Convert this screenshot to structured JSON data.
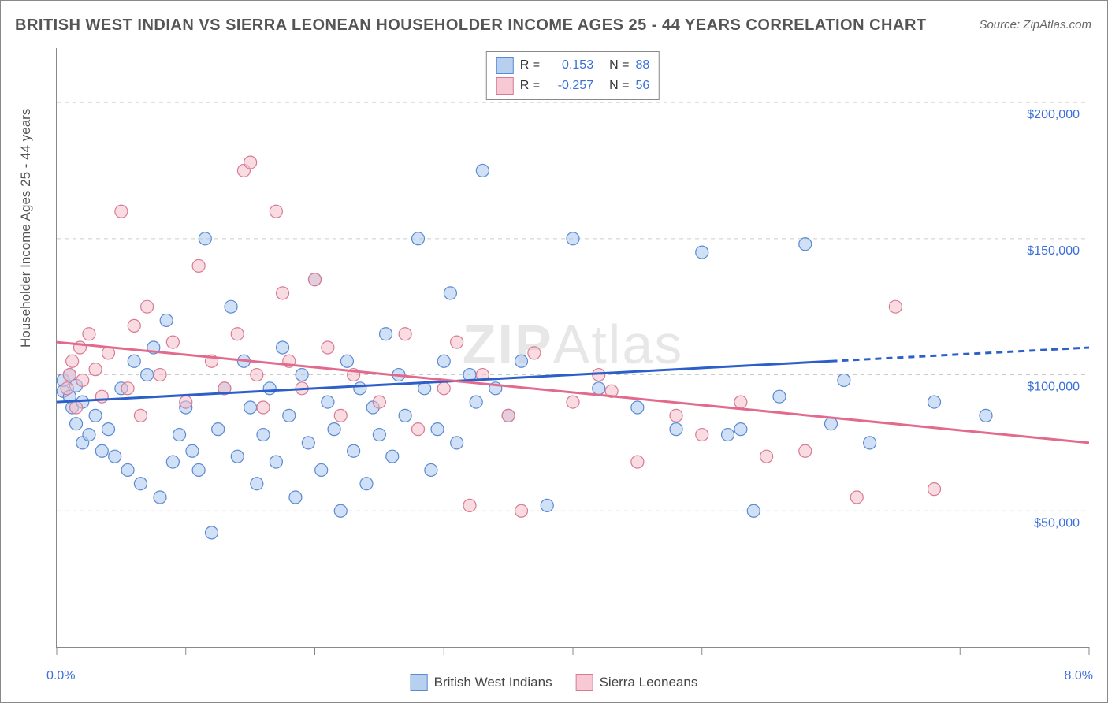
{
  "title": "BRITISH WEST INDIAN VS SIERRA LEONEAN HOUSEHOLDER INCOME AGES 25 - 44 YEARS CORRELATION CHART",
  "source": "Source: ZipAtlas.com",
  "watermark_bold": "ZIP",
  "watermark_thin": "Atlas",
  "ylabel": "Householder Income Ages 25 - 44 years",
  "chart": {
    "type": "scatter",
    "xlim": [
      0,
      8
    ],
    "ylim": [
      0,
      220000
    ],
    "x_ticks": [
      0,
      1,
      2,
      3,
      4,
      5,
      6,
      7,
      8
    ],
    "x_tick_labels_visible": {
      "0": "0.0%",
      "8": "8.0%"
    },
    "y_gridlines": [
      50000,
      100000,
      150000,
      200000
    ],
    "y_tick_labels": {
      "50000": "$50,000",
      "100000": "$100,000",
      "150000": "$150,000",
      "200000": "$200,000"
    },
    "background_color": "#ffffff",
    "grid_color": "#cccccc",
    "axis_color": "#888888",
    "tick_label_color": "#3b6fd8",
    "marker_radius": 8,
    "marker_opacity": 0.55,
    "series": [
      {
        "name": "British West Indians",
        "color_fill": "#a9c7ef",
        "color_stroke": "#5a8ad0",
        "legend_swatch": "#b8d0f0",
        "R": "0.153",
        "N": "88",
        "trend": {
          "x1": 0,
          "y1": 90000,
          "x2_solid": 6.0,
          "y2_solid": 105000,
          "x2_dash": 8.0,
          "y2_dash": 110000,
          "color": "#2c5fc9",
          "width": 3
        },
        "points": [
          [
            0.05,
            94000
          ],
          [
            0.05,
            98000
          ],
          [
            0.1,
            92000
          ],
          [
            0.1,
            100000
          ],
          [
            0.12,
            88000
          ],
          [
            0.15,
            96000
          ],
          [
            0.15,
            82000
          ],
          [
            0.2,
            90000
          ],
          [
            0.2,
            75000
          ],
          [
            0.25,
            78000
          ],
          [
            0.3,
            85000
          ],
          [
            0.35,
            72000
          ],
          [
            0.4,
            80000
          ],
          [
            0.45,
            70000
          ],
          [
            0.5,
            95000
          ],
          [
            0.55,
            65000
          ],
          [
            0.6,
            105000
          ],
          [
            0.65,
            60000
          ],
          [
            0.7,
            100000
          ],
          [
            0.75,
            110000
          ],
          [
            0.8,
            55000
          ],
          [
            0.85,
            120000
          ],
          [
            0.9,
            68000
          ],
          [
            0.95,
            78000
          ],
          [
            1.0,
            88000
          ],
          [
            1.05,
            72000
          ],
          [
            1.1,
            65000
          ],
          [
            1.15,
            150000
          ],
          [
            1.2,
            42000
          ],
          [
            1.25,
            80000
          ],
          [
            1.3,
            95000
          ],
          [
            1.35,
            125000
          ],
          [
            1.4,
            70000
          ],
          [
            1.45,
            105000
          ],
          [
            1.5,
            88000
          ],
          [
            1.55,
            60000
          ],
          [
            1.6,
            78000
          ],
          [
            1.65,
            95000
          ],
          [
            1.7,
            68000
          ],
          [
            1.75,
            110000
          ],
          [
            1.8,
            85000
          ],
          [
            1.85,
            55000
          ],
          [
            1.9,
            100000
          ],
          [
            1.95,
            75000
          ],
          [
            2.0,
            135000
          ],
          [
            2.05,
            65000
          ],
          [
            2.1,
            90000
          ],
          [
            2.15,
            80000
          ],
          [
            2.2,
            50000
          ],
          [
            2.25,
            105000
          ],
          [
            2.3,
            72000
          ],
          [
            2.35,
            95000
          ],
          [
            2.4,
            60000
          ],
          [
            2.45,
            88000
          ],
          [
            2.5,
            78000
          ],
          [
            2.55,
            115000
          ],
          [
            2.6,
            70000
          ],
          [
            2.65,
            100000
          ],
          [
            2.7,
            85000
          ],
          [
            2.8,
            150000
          ],
          [
            2.85,
            95000
          ],
          [
            2.9,
            65000
          ],
          [
            2.95,
            80000
          ],
          [
            3.0,
            105000
          ],
          [
            3.05,
            130000
          ],
          [
            3.1,
            75000
          ],
          [
            3.2,
            100000
          ],
          [
            3.25,
            90000
          ],
          [
            3.3,
            175000
          ],
          [
            3.4,
            95000
          ],
          [
            3.5,
            85000
          ],
          [
            3.6,
            105000
          ],
          [
            3.8,
            52000
          ],
          [
            4.0,
            150000
          ],
          [
            4.2,
            95000
          ],
          [
            4.5,
            88000
          ],
          [
            4.8,
            80000
          ],
          [
            5.0,
            145000
          ],
          [
            5.2,
            78000
          ],
          [
            5.3,
            80000
          ],
          [
            5.4,
            50000
          ],
          [
            5.6,
            92000
          ],
          [
            5.8,
            148000
          ],
          [
            6.0,
            82000
          ],
          [
            6.1,
            98000
          ],
          [
            6.3,
            75000
          ],
          [
            6.8,
            90000
          ],
          [
            7.2,
            85000
          ]
        ]
      },
      {
        "name": "Sierra Leoneans",
        "color_fill": "#f4bfcb",
        "color_stroke": "#d97a94",
        "legend_swatch": "#f6c9d4",
        "R": "-0.257",
        "N": "56",
        "trend": {
          "x1": 0,
          "y1": 112000,
          "x2_solid": 8.0,
          "y2_solid": 75000,
          "x2_dash": 8.0,
          "y2_dash": 75000,
          "color": "#e26a8d",
          "width": 3
        },
        "points": [
          [
            0.08,
            95000
          ],
          [
            0.1,
            100000
          ],
          [
            0.12,
            105000
          ],
          [
            0.15,
            88000
          ],
          [
            0.18,
            110000
          ],
          [
            0.2,
            98000
          ],
          [
            0.25,
            115000
          ],
          [
            0.3,
            102000
          ],
          [
            0.35,
            92000
          ],
          [
            0.4,
            108000
          ],
          [
            0.5,
            160000
          ],
          [
            0.55,
            95000
          ],
          [
            0.6,
            118000
          ],
          [
            0.65,
            85000
          ],
          [
            0.7,
            125000
          ],
          [
            0.8,
            100000
          ],
          [
            0.9,
            112000
          ],
          [
            1.0,
            90000
          ],
          [
            1.1,
            140000
          ],
          [
            1.2,
            105000
          ],
          [
            1.3,
            95000
          ],
          [
            1.4,
            115000
          ],
          [
            1.45,
            175000
          ],
          [
            1.5,
            178000
          ],
          [
            1.55,
            100000
          ],
          [
            1.6,
            88000
          ],
          [
            1.7,
            160000
          ],
          [
            1.75,
            130000
          ],
          [
            1.8,
            105000
          ],
          [
            1.9,
            95000
          ],
          [
            2.0,
            135000
          ],
          [
            2.1,
            110000
          ],
          [
            2.2,
            85000
          ],
          [
            2.3,
            100000
          ],
          [
            2.5,
            90000
          ],
          [
            2.7,
            115000
          ],
          [
            2.8,
            80000
          ],
          [
            3.0,
            95000
          ],
          [
            3.1,
            112000
          ],
          [
            3.2,
            52000
          ],
          [
            3.3,
            100000
          ],
          [
            3.5,
            85000
          ],
          [
            3.6,
            50000
          ],
          [
            3.7,
            108000
          ],
          [
            4.0,
            90000
          ],
          [
            4.2,
            100000
          ],
          [
            4.3,
            94000
          ],
          [
            4.5,
            68000
          ],
          [
            4.8,
            85000
          ],
          [
            5.0,
            78000
          ],
          [
            5.3,
            90000
          ],
          [
            5.5,
            70000
          ],
          [
            5.8,
            72000
          ],
          [
            6.2,
            55000
          ],
          [
            6.5,
            125000
          ],
          [
            6.8,
            58000
          ]
        ]
      }
    ]
  },
  "legend_top_labels": {
    "R": "R =",
    "N": "N ="
  },
  "legend_bottom": [
    {
      "label": "British West Indians",
      "swatch": "#b8d0f0",
      "border": "#5a8ad0"
    },
    {
      "label": "Sierra Leoneans",
      "swatch": "#f6c9d4",
      "border": "#d97a94"
    }
  ]
}
